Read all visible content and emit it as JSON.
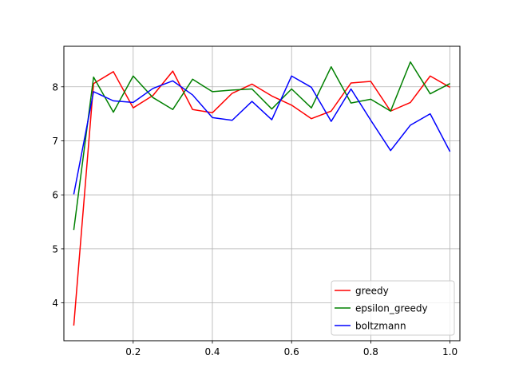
{
  "chart_data": {
    "type": "line",
    "title": "",
    "xlabel": "",
    "ylabel": "",
    "xlim": [
      0.025,
      1.025
    ],
    "ylim": [
      3.3,
      8.75
    ],
    "xticks": [
      0.2,
      0.4,
      0.6,
      0.8,
      1.0
    ],
    "xtick_labels": [
      "0.2",
      "0.4",
      "0.6",
      "0.8",
      "1.0"
    ],
    "yticks": [
      4,
      5,
      6,
      7,
      8
    ],
    "ytick_labels": [
      "4",
      "5",
      "6",
      "7",
      "8"
    ],
    "grid": true,
    "legend_position": "lower-right",
    "x": [
      0.05,
      0.1,
      0.15,
      0.2,
      0.25,
      0.3,
      0.35,
      0.4,
      0.45,
      0.5,
      0.55,
      0.6,
      0.65,
      0.7,
      0.75,
      0.8,
      0.85,
      0.9,
      0.95,
      1.0
    ],
    "series": [
      {
        "name": "greedy",
        "color": "#ff0000",
        "values": [
          3.58,
          8.06,
          8.28,
          7.61,
          7.84,
          8.29,
          7.58,
          7.52,
          7.88,
          8.05,
          7.83,
          7.66,
          7.41,
          7.55,
          8.07,
          8.1,
          7.55,
          7.71,
          8.2,
          7.99
        ]
      },
      {
        "name": "epsilon_greedy",
        "color": "#008000",
        "values": [
          5.35,
          8.18,
          7.53,
          8.2,
          7.8,
          7.58,
          8.14,
          7.91,
          7.94,
          7.96,
          7.59,
          7.96,
          7.61,
          8.37,
          7.7,
          7.77,
          7.55,
          8.46,
          7.87,
          8.06
        ]
      },
      {
        "name": "boltzmann",
        "color": "#0000ff",
        "values": [
          6.01,
          7.91,
          7.74,
          7.71,
          7.97,
          8.11,
          7.85,
          7.43,
          7.38,
          7.73,
          7.39,
          8.2,
          7.99,
          7.36,
          7.96,
          7.38,
          6.82,
          7.29,
          7.5,
          6.8
        ]
      }
    ]
  }
}
